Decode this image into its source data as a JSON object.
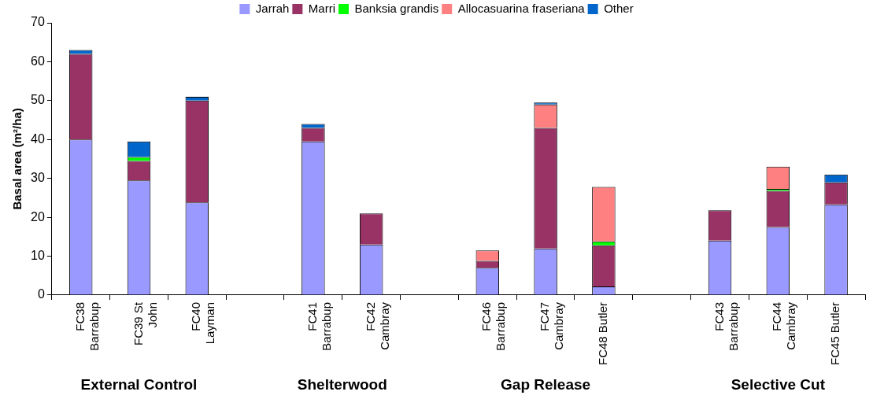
{
  "chart_data": {
    "type": "bar",
    "stacked": true,
    "ylabel": "Basal area (m²/ha)",
    "categories": [
      "FC38\nBarrabup",
      "FC39 St\nJohn",
      "FC40\nLayman",
      null,
      "FC41\nBarrabup",
      "FC42\nCambray",
      null,
      "FC46\nBarrabup",
      "FC47\nCambray",
      "FC48 Butler",
      null,
      "FC43\nBarrabup",
      "FC44\nCambray",
      "FC45 Butler"
    ],
    "series": [
      {
        "name": "Jarrah",
        "color": "#9999ff",
        "values": [
          40,
          29.5,
          23.8,
          null,
          39.5,
          13,
          null,
          7,
          12,
          2.2,
          null,
          14,
          17.5,
          23.3
        ]
      },
      {
        "name": "Marri",
        "color": "#993366",
        "values": [
          22,
          5,
          26.2,
          null,
          3.5,
          8,
          null,
          1.8,
          31,
          10.6,
          null,
          7.8,
          9.3,
          5.7
        ]
      },
      {
        "name": "Banksia grandis",
        "color": "#00ff00",
        "values": [
          null,
          1,
          null,
          null,
          null,
          null,
          null,
          null,
          null,
          1,
          null,
          null,
          0.5,
          null
        ]
      },
      {
        "name": "Allocasuarina fraseriana",
        "color": "#ff8080",
        "values": [
          null,
          null,
          null,
          null,
          null,
          null,
          null,
          2.7,
          6,
          14,
          null,
          null,
          5.7,
          null
        ]
      },
      {
        "name": "Other",
        "color": "#0066cc",
        "values": [
          1,
          4,
          1,
          null,
          1,
          null,
          null,
          null,
          0.5,
          null,
          null,
          null,
          null,
          2
        ]
      }
    ],
    "ylim": [
      0,
      70
    ],
    "yticks": [
      0,
      10,
      20,
      30,
      40,
      50,
      60,
      70
    ],
    "grid": false,
    "legend": "top",
    "annotations": [
      "External Control",
      "Shelterwood",
      "Gap Release",
      "Selective Cut"
    ]
  }
}
